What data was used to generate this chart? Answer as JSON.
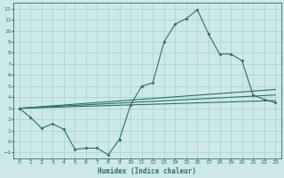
{
  "background_color": "#cce9e8",
  "grid_color": "#aacfce",
  "line_color": "#2e6e65",
  "xlabel": "Humidex (Indice chaleur)",
  "xlim": [
    -0.5,
    23.5
  ],
  "ylim": [
    -1.5,
    12.5
  ],
  "xticks": [
    0,
    1,
    2,
    3,
    4,
    5,
    6,
    7,
    8,
    9,
    10,
    11,
    12,
    13,
    14,
    15,
    16,
    17,
    18,
    19,
    20,
    21,
    22,
    23
  ],
  "yticks": [
    -1,
    0,
    1,
    2,
    3,
    4,
    5,
    6,
    7,
    8,
    9,
    10,
    11,
    12
  ],
  "series1_x": [
    0,
    1,
    2,
    3,
    4,
    5,
    6,
    7,
    8,
    9,
    10,
    11,
    12,
    13,
    14,
    15,
    16,
    17,
    18,
    19,
    20,
    21,
    22,
    23
  ],
  "series1_y": [
    3.0,
    2.2,
    1.2,
    1.6,
    1.1,
    -0.7,
    -0.6,
    -0.6,
    -1.2,
    0.2,
    3.3,
    5.0,
    5.3,
    9.0,
    10.6,
    11.1,
    11.9,
    9.7,
    7.9,
    7.9,
    7.3,
    4.2,
    3.8,
    3.5
  ],
  "series2_x": [
    0,
    23
  ],
  "series2_y": [
    3.0,
    3.7
  ],
  "series3_x": [
    0,
    23
  ],
  "series3_y": [
    3.0,
    4.2
  ],
  "series4_x": [
    0,
    23
  ],
  "series4_y": [
    3.0,
    4.7
  ]
}
